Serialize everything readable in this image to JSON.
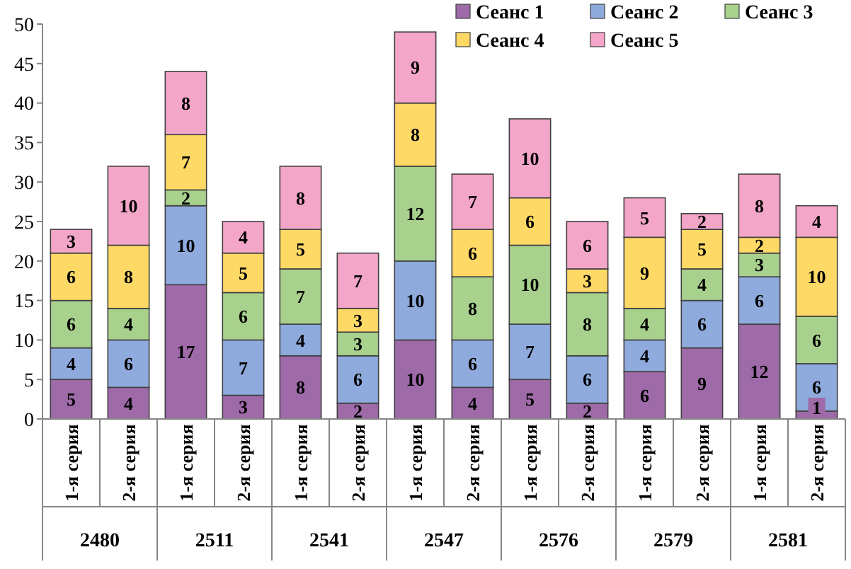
{
  "chart_data": {
    "type": "bar",
    "stacked": true,
    "data_labels": true,
    "legend": "top right",
    "grid": false,
    "categories": [
      "1-я серия",
      "2-я серия",
      "1-я серия",
      "2-я серия",
      "1-я серия",
      "2-я серия",
      "1-я серия",
      "2-я серия",
      "1-я серия",
      "2-я серия",
      "1-я серия",
      "2-я серия",
      "1-я серия",
      "2-я серия"
    ],
    "annotations": [
      "2480",
      "2511",
      "2541",
      "2547",
      "2576",
      "2579",
      "2581"
    ],
    "ylim": [
      0,
      50
    ],
    "yticks": [
      0,
      5,
      10,
      15,
      20,
      25,
      30,
      35,
      40,
      45,
      50
    ],
    "series": [
      {
        "name": "Сеанс 1",
        "color": "#9e6aa8",
        "values": [
          5,
          4,
          17,
          3,
          8,
          2,
          10,
          4,
          5,
          2,
          6,
          9,
          12,
          1
        ]
      },
      {
        "name": "Сеанс 2",
        "color": "#8faadc",
        "values": [
          4,
          6,
          10,
          7,
          4,
          6,
          10,
          6,
          7,
          6,
          4,
          6,
          6,
          6
        ]
      },
      {
        "name": "Сеанс 3",
        "color": "#a9d18e",
        "values": [
          6,
          4,
          2,
          6,
          7,
          3,
          12,
          8,
          10,
          8,
          4,
          4,
          3,
          6
        ]
      },
      {
        "name": "Сеанс 4",
        "color": "#ffd966",
        "values": [
          6,
          8,
          7,
          5,
          5,
          3,
          8,
          6,
          6,
          3,
          9,
          5,
          2,
          10
        ]
      },
      {
        "name": "Сеанс 5",
        "color": "#f4a6c8",
        "values": [
          3,
          10,
          8,
          4,
          8,
          7,
          9,
          7,
          10,
          6,
          5,
          2,
          8,
          4
        ]
      }
    ]
  }
}
